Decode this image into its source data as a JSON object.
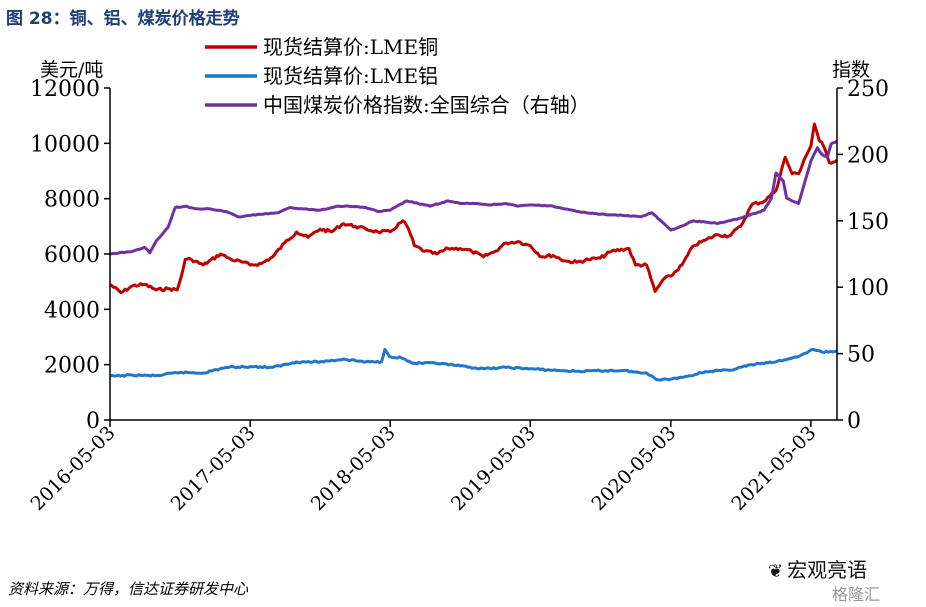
{
  "figure": {
    "title": "图 28：铜、铝、煤炭价格走势",
    "source": "资料来源：万得，信达证券研发中心",
    "watermark": "宏观亮语",
    "logo": "格隆汇"
  },
  "chart_data": {
    "type": "line",
    "y_left": {
      "label": "美元/吨",
      "range": [
        0,
        12000
      ],
      "ticks": [
        0,
        2000,
        4000,
        6000,
        8000,
        10000,
        12000
      ]
    },
    "y_right": {
      "label": "指数",
      "range": [
        0,
        250
      ],
      "ticks": [
        0,
        50,
        100,
        150,
        200,
        250
      ]
    },
    "x_range": [
      "2016-05-03",
      "2021-07-10"
    ],
    "x_ticks": [
      "2016-05-03",
      "2017-05-03",
      "2018-05-03",
      "2019-05-03",
      "2020-05-03",
      "2021-05-03"
    ],
    "grid": false,
    "legend_position": "top",
    "series": [
      {
        "name": "现货结算价:LME铜",
        "axis": "left",
        "color": "#c00000",
        "points": [
          [
            "2016-05-03",
            4900
          ],
          [
            "2016-06-01",
            4600
          ],
          [
            "2016-07-01",
            4850
          ],
          [
            "2016-08-01",
            4900
          ],
          [
            "2016-09-01",
            4700
          ],
          [
            "2016-10-01",
            4750
          ],
          [
            "2016-10-25",
            4700
          ],
          [
            "2016-11-05",
            5200
          ],
          [
            "2016-11-15",
            5800
          ],
          [
            "2016-12-01",
            5800
          ],
          [
            "2017-01-01",
            5600
          ],
          [
            "2017-02-15",
            6000
          ],
          [
            "2017-03-15",
            5800
          ],
          [
            "2017-04-15",
            5700
          ],
          [
            "2017-05-03",
            5600
          ],
          [
            "2017-06-01",
            5650
          ],
          [
            "2017-07-01",
            5900
          ],
          [
            "2017-08-01",
            6400
          ],
          [
            "2017-09-01",
            6800
          ],
          [
            "2017-10-01",
            6600
          ],
          [
            "2017-11-01",
            6900
          ],
          [
            "2017-12-01",
            6800
          ],
          [
            "2018-01-01",
            7100
          ],
          [
            "2018-02-01",
            7000
          ],
          [
            "2018-03-01",
            6900
          ],
          [
            "2018-04-01",
            6800
          ],
          [
            "2018-05-03",
            6800
          ],
          [
            "2018-06-05",
            7200
          ],
          [
            "2018-06-20",
            6900
          ],
          [
            "2018-07-05",
            6300
          ],
          [
            "2018-08-01",
            6100
          ],
          [
            "2018-09-01",
            6000
          ],
          [
            "2018-10-01",
            6200
          ],
          [
            "2018-11-01",
            6200
          ],
          [
            "2018-12-01",
            6100
          ],
          [
            "2019-01-01",
            5900
          ],
          [
            "2019-02-01",
            6100
          ],
          [
            "2019-03-01",
            6400
          ],
          [
            "2019-04-01",
            6450
          ],
          [
            "2019-05-03",
            6300
          ],
          [
            "2019-06-01",
            5900
          ],
          [
            "2019-07-01",
            5950
          ],
          [
            "2019-08-01",
            5750
          ],
          [
            "2019-09-01",
            5700
          ],
          [
            "2019-10-01",
            5800
          ],
          [
            "2019-11-01",
            5850
          ],
          [
            "2019-12-01",
            6100
          ],
          [
            "2020-01-15",
            6200
          ],
          [
            "2020-02-01",
            5600
          ],
          [
            "2020-03-01",
            5600
          ],
          [
            "2020-03-23",
            4650
          ],
          [
            "2020-04-15",
            5100
          ],
          [
            "2020-05-03",
            5200
          ],
          [
            "2020-06-01",
            5600
          ],
          [
            "2020-07-01",
            6300
          ],
          [
            "2020-08-01",
            6500
          ],
          [
            "2020-09-01",
            6700
          ],
          [
            "2020-10-01",
            6650
          ],
          [
            "2020-11-01",
            7000
          ],
          [
            "2020-12-01",
            7800
          ],
          [
            "2021-01-01",
            7900
          ],
          [
            "2021-02-01",
            8300
          ],
          [
            "2021-02-25",
            9500
          ],
          [
            "2021-03-15",
            8900
          ],
          [
            "2021-04-01",
            8900
          ],
          [
            "2021-04-15",
            9400
          ],
          [
            "2021-05-03",
            9900
          ],
          [
            "2021-05-12",
            10700
          ],
          [
            "2021-05-25",
            10100
          ],
          [
            "2021-06-05",
            9900
          ],
          [
            "2021-06-20",
            9300
          ],
          [
            "2021-07-10",
            9400
          ]
        ]
      },
      {
        "name": "现货结算价:LME铝",
        "axis": "left",
        "color": "#1f77c8",
        "points": [
          [
            "2016-05-03",
            1580
          ],
          [
            "2016-07-01",
            1620
          ],
          [
            "2016-09-01",
            1600
          ],
          [
            "2016-11-01",
            1720
          ],
          [
            "2017-01-01",
            1700
          ],
          [
            "2017-03-01",
            1900
          ],
          [
            "2017-05-03",
            1930
          ],
          [
            "2017-07-01",
            1900
          ],
          [
            "2017-09-01",
            2100
          ],
          [
            "2017-11-01",
            2100
          ],
          [
            "2018-01-01",
            2200
          ],
          [
            "2018-03-01",
            2100
          ],
          [
            "2018-04-10",
            2100
          ],
          [
            "2018-04-19",
            2550
          ],
          [
            "2018-05-01",
            2300
          ],
          [
            "2018-06-01",
            2250
          ],
          [
            "2018-07-01",
            2050
          ],
          [
            "2018-09-01",
            2050
          ],
          [
            "2018-11-01",
            1950
          ],
          [
            "2019-01-01",
            1850
          ],
          [
            "2019-03-01",
            1900
          ],
          [
            "2019-05-03",
            1850
          ],
          [
            "2019-07-01",
            1800
          ],
          [
            "2019-09-01",
            1760
          ],
          [
            "2019-11-01",
            1780
          ],
          [
            "2020-01-01",
            1790
          ],
          [
            "2020-02-15",
            1700
          ],
          [
            "2020-03-01",
            1700
          ],
          [
            "2020-04-01",
            1450
          ],
          [
            "2020-05-03",
            1480
          ],
          [
            "2020-06-15",
            1580
          ],
          [
            "2020-08-01",
            1750
          ],
          [
            "2020-10-01",
            1800
          ],
          [
            "2020-12-01",
            2000
          ],
          [
            "2021-02-01",
            2100
          ],
          [
            "2021-04-01",
            2300
          ],
          [
            "2021-05-10",
            2550
          ],
          [
            "2021-06-01",
            2450
          ],
          [
            "2021-07-10",
            2500
          ]
        ]
      },
      {
        "name": "中国煤炭价格指数:全国综合（右轴）",
        "axis": "right",
        "color": "#7030a0",
        "points": [
          [
            "2016-05-03",
            125
          ],
          [
            "2016-07-01",
            127
          ],
          [
            "2016-08-01",
            130
          ],
          [
            "2016-08-15",
            126
          ],
          [
            "2016-09-01",
            135
          ],
          [
            "2016-10-01",
            145
          ],
          [
            "2016-10-20",
            160
          ],
          [
            "2016-11-15",
            161
          ],
          [
            "2016-12-15",
            159
          ],
          [
            "2017-01-15",
            159
          ],
          [
            "2017-03-01",
            157
          ],
          [
            "2017-04-01",
            153
          ],
          [
            "2017-05-03",
            154
          ],
          [
            "2017-06-01",
            155
          ],
          [
            "2017-07-15",
            156
          ],
          [
            "2017-08-15",
            160
          ],
          [
            "2017-09-15",
            159
          ],
          [
            "2017-11-01",
            158
          ],
          [
            "2017-12-15",
            161
          ],
          [
            "2018-01-15",
            161
          ],
          [
            "2018-03-01",
            160
          ],
          [
            "2018-04-01",
            157
          ],
          [
            "2018-05-03",
            158
          ],
          [
            "2018-06-15",
            165
          ],
          [
            "2018-07-15",
            163
          ],
          [
            "2018-08-15",
            161
          ],
          [
            "2018-10-01",
            165
          ],
          [
            "2018-11-01",
            163
          ],
          [
            "2018-12-15",
            163
          ],
          [
            "2019-01-15",
            162
          ],
          [
            "2019-03-01",
            163
          ],
          [
            "2019-04-01",
            161
          ],
          [
            "2019-05-03",
            162
          ],
          [
            "2019-07-01",
            161
          ],
          [
            "2019-09-01",
            157
          ],
          [
            "2019-11-01",
            155
          ],
          [
            "2020-01-01",
            154
          ],
          [
            "2020-02-15",
            153
          ],
          [
            "2020-03-15",
            156
          ],
          [
            "2020-04-15",
            148
          ],
          [
            "2020-05-03",
            143
          ],
          [
            "2020-06-01",
            146
          ],
          [
            "2020-07-01",
            150
          ],
          [
            "2020-09-01",
            148
          ],
          [
            "2020-11-01",
            152
          ],
          [
            "2021-01-01",
            158
          ],
          [
            "2021-01-20",
            167
          ],
          [
            "2021-02-01",
            186
          ],
          [
            "2021-02-20",
            180
          ],
          [
            "2021-03-01",
            167
          ],
          [
            "2021-04-01",
            163
          ],
          [
            "2021-04-20",
            182
          ],
          [
            "2021-05-03",
            195
          ],
          [
            "2021-05-20",
            205
          ],
          [
            "2021-06-01",
            200
          ],
          [
            "2021-06-15",
            198
          ],
          [
            "2021-06-25",
            208
          ],
          [
            "2021-07-10",
            210
          ]
        ]
      }
    ]
  }
}
